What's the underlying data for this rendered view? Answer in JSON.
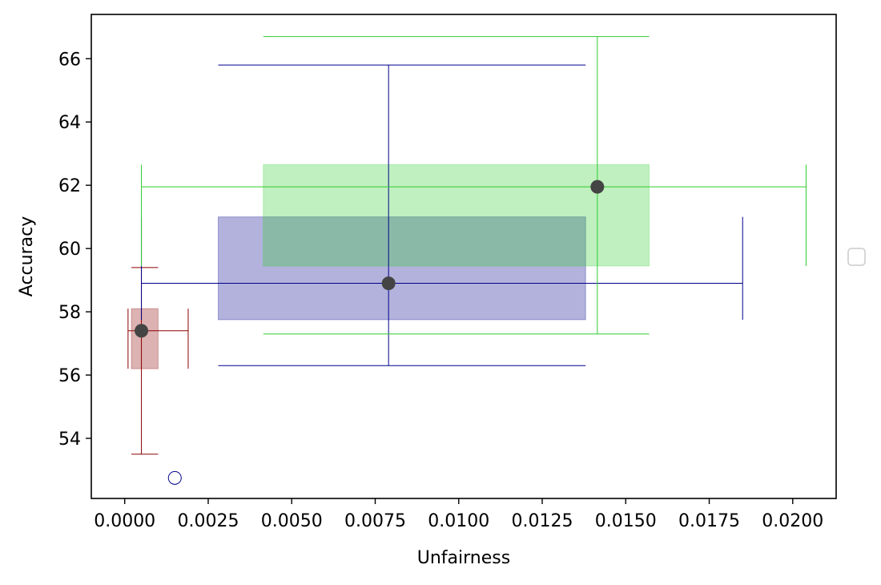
{
  "chart_data": {
    "type": "scatter",
    "xlabel": "Unfairness",
    "ylabel": "Accuracy",
    "xlim": [
      -0.001,
      0.0213
    ],
    "ylim": [
      52.1,
      67.4
    ],
    "xticks": [
      0.0,
      0.0025,
      0.005,
      0.0075,
      0.01,
      0.0125,
      0.015,
      0.0175,
      0.02
    ],
    "xtick_labels": [
      "0.0000",
      "0.0025",
      "0.0050",
      "0.0075",
      "0.0100",
      "0.0125",
      "0.0150",
      "0.0175",
      "0.0200"
    ],
    "yticks": [
      54,
      56,
      58,
      60,
      62,
      64,
      66
    ],
    "ytick_labels": [
      "54",
      "56",
      "58",
      "60",
      "62",
      "64",
      "66"
    ],
    "grid": false,
    "legend": "right (empty)",
    "groups": [
      {
        "color": "#8b0000",
        "point": [
          0.0005,
          57.4
        ],
        "box_x": [
          0.0002,
          0.001
        ],
        "box_y": [
          56.2,
          58.1
        ],
        "whisker_x": [
          0.0001,
          0.0019
        ],
        "whisker_y": [
          53.5,
          59.4
        ]
      },
      {
        "color": "#00008b",
        "point": [
          0.0079,
          58.9
        ],
        "box_x": [
          0.0028,
          0.0138
        ],
        "box_y": [
          57.75,
          61.0
        ],
        "whisker_x": [
          0.0005,
          0.0185
        ],
        "whisker_y": [
          56.3,
          65.8
        ]
      },
      {
        "color": "#2ecc2e",
        "point": [
          0.01415,
          61.95
        ],
        "box_x": [
          0.00415,
          0.0157
        ],
        "box_y": [
          59.45,
          62.65
        ],
        "whisker_x": [
          0.0005,
          0.0204
        ],
        "whisker_y": [
          57.3,
          66.7
        ]
      }
    ],
    "outliers": [
      {
        "x": 0.0015,
        "y": 52.75,
        "color": "#00008b"
      }
    ]
  }
}
